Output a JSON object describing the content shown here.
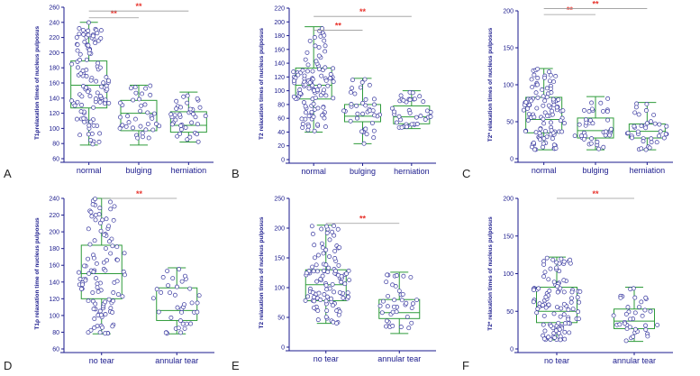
{
  "chart_data": [
    {
      "label": "A",
      "type": "box-dot",
      "ylabel": "T1ρrelaxation times of nucleus pulposus",
      "ylim": [
        60,
        260
      ],
      "yticks": [
        60,
        80,
        100,
        120,
        140,
        160,
        180,
        200,
        220,
        240,
        260
      ],
      "groups": [
        {
          "name": "normal",
          "min": 78,
          "q1": 127,
          "median": 157,
          "q3": 189,
          "max": 240
        },
        {
          "name": "bulging",
          "min": 78,
          "q1": 97,
          "median": 120,
          "q3": 137,
          "max": 157
        },
        {
          "name": "herniation",
          "min": 82,
          "q1": 95,
          "median": 104,
          "q3": 122,
          "max": 148
        }
      ],
      "sig": [
        {
          "from": 0,
          "to": 1,
          "y": 246,
          "text": "**"
        },
        {
          "from": 0,
          "to": 2,
          "y": 255,
          "text": "**"
        }
      ]
    },
    {
      "label": "B",
      "type": "box-dot",
      "ylabel": "T2 relaxation times of nucleus pulposus",
      "ylim": [
        0,
        220
      ],
      "yticks": [
        0,
        20,
        40,
        60,
        80,
        100,
        120,
        140,
        160,
        180,
        200,
        220
      ],
      "groups": [
        {
          "name": "normal",
          "min": 40,
          "q1": 88,
          "median": 108,
          "q3": 133,
          "max": 193
        },
        {
          "name": "bulging",
          "min": 23,
          "q1": 55,
          "median": 63,
          "q3": 80,
          "max": 118
        },
        {
          "name": "herniation",
          "min": 45,
          "q1": 52,
          "median": 62,
          "q3": 78,
          "max": 100
        }
      ],
      "sig": [
        {
          "from": 0,
          "to": 1,
          "y": 188,
          "text": "**"
        },
        {
          "from": 0,
          "to": 2,
          "y": 208,
          "text": "**"
        }
      ]
    },
    {
      "label": "C",
      "type": "box-dot",
      "ylabel": "T2* relaxation times of nucleus pulposus",
      "ylim": [
        0,
        200
      ],
      "yticks": [
        0,
        50,
        100,
        150,
        200
      ],
      "groups": [
        {
          "name": "normal",
          "min": 12,
          "q1": 35,
          "median": 53,
          "q3": 83,
          "max": 122
        },
        {
          "name": "bulging",
          "min": 12,
          "q1": 28,
          "median": 38,
          "q3": 55,
          "max": 84
        },
        {
          "name": "herniation",
          "min": 12,
          "q1": 28,
          "median": 37,
          "q3": 47,
          "max": 76
        }
      ],
      "sig": [
        {
          "from": 0,
          "to": 1,
          "y": 195,
          "text": "**"
        },
        {
          "from": 0,
          "to": 2,
          "y": 203,
          "text": "**"
        }
      ]
    },
    {
      "label": "D",
      "type": "box-dot",
      "ylabel": "T1ρ relaxation time of nucleus pulposus",
      "ylim": [
        60,
        240
      ],
      "yticks": [
        60,
        80,
        100,
        120,
        140,
        160,
        180,
        200,
        220,
        240
      ],
      "groups": [
        {
          "name": "no tear",
          "min": 78,
          "q1": 120,
          "median": 150,
          "q3": 184,
          "max": 240
        },
        {
          "name": "annular tear",
          "min": 78,
          "q1": 94,
          "median": 106,
          "q3": 133,
          "max": 157
        }
      ],
      "sig": [
        {
          "from": 0,
          "to": 1,
          "y": 240,
          "text": "**"
        }
      ]
    },
    {
      "label": "E",
      "type": "box-dot",
      "ylabel": "T2 relaxation times of nucleus pulposus",
      "ylim": [
        0,
        250
      ],
      "yticks": [
        0,
        50,
        100,
        150,
        200,
        250
      ],
      "groups": [
        {
          "name": "no tear",
          "min": 40,
          "q1": 78,
          "median": 105,
          "q3": 130,
          "max": 205
        },
        {
          "name": "annular tear",
          "min": 23,
          "q1": 48,
          "median": 58,
          "q3": 80,
          "max": 126
        }
      ],
      "sig": [
        {
          "from": 0,
          "to": 1,
          "y": 208,
          "text": "**"
        }
      ]
    },
    {
      "label": "F",
      "type": "box-dot",
      "ylabel": "T2* relaxation times of nucleus pulposus",
      "ylim": [
        0,
        200
      ],
      "yticks": [
        0,
        50,
        100,
        150,
        200
      ],
      "groups": [
        {
          "name": "no tear",
          "min": 12,
          "q1": 35,
          "median": 50,
          "q3": 82,
          "max": 122
        },
        {
          "name": "annular tear",
          "min": 10,
          "q1": 27,
          "median": 37,
          "q3": 53,
          "max": 82
        }
      ],
      "sig": [
        {
          "from": 0,
          "to": 1,
          "y": 200,
          "text": "**"
        }
      ]
    }
  ]
}
